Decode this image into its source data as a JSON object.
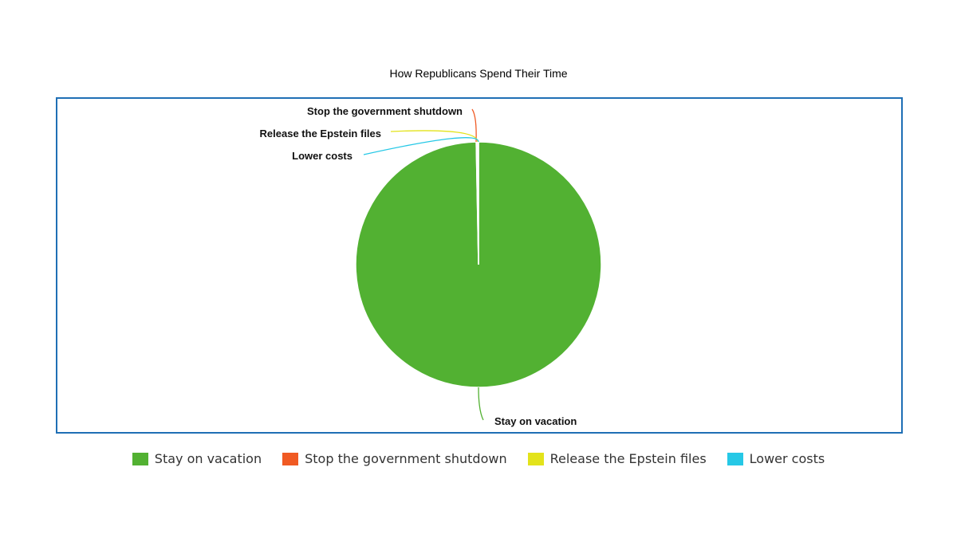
{
  "chart_data": {
    "type": "pie",
    "title": "How Republicans Spend Their Time",
    "slices": [
      {
        "label": "Stay on vacation",
        "value": 99.7,
        "color": "#52b132"
      },
      {
        "label": "Stop the government shutdown",
        "value": 0.1,
        "color": "#f05a23"
      },
      {
        "label": "Release the Epstein files",
        "value": 0.1,
        "color": "#e3e31b"
      },
      {
        "label": "Lower costs",
        "value": 0.1,
        "color": "#26c8e6"
      }
    ],
    "legend_position": "bottom",
    "frame_color": "#1f6fb5"
  }
}
